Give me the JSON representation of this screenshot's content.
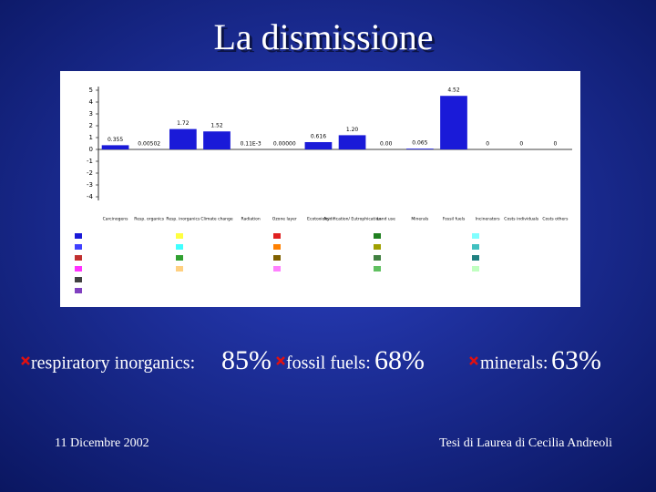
{
  "title": "La dismissione",
  "chart_data": {
    "type": "bar",
    "categories": [
      "Carcinogens",
      "Resp. organics",
      "Resp. inorganics",
      "Climate change",
      "Radiation",
      "Ozone layer",
      "Ecotoxicity",
      "Acidification/ Eutrophication",
      "Land use",
      "Minerals",
      "Fossil fuels",
      "Incinerators",
      "Costs individuals",
      "Costs others"
    ],
    "values": [
      0.355,
      0.00502,
      1.72,
      1.52,
      0.00011,
      0.0,
      0.616,
      1.2,
      0.0,
      0.065,
      4.52,
      0,
      0,
      0
    ],
    "value_labels": [
      "0.355",
      "0.00502",
      "1.72",
      "1.52",
      "0.11E-3",
      "0.00000",
      "0.616",
      "1.20",
      "0.00",
      "0.065",
      "4.52",
      "0",
      "0",
      "0"
    ],
    "color": "#1a1ad8",
    "ylim": [
      -4,
      5
    ],
    "yticks": [
      -4,
      -3,
      -2,
      -1,
      0,
      1,
      2,
      3,
      4,
      5
    ]
  },
  "bullets": [
    {
      "label": "respiratory inorganics:",
      "value": "85%"
    },
    {
      "label": "fossil fuels:",
      "value": "68%"
    },
    {
      "label": "minerals:",
      "value": "63%"
    }
  ],
  "footer": {
    "date": "11 Dicembre 2002",
    "author": "Tesi di Laurea di Cecilia Andreoli"
  }
}
